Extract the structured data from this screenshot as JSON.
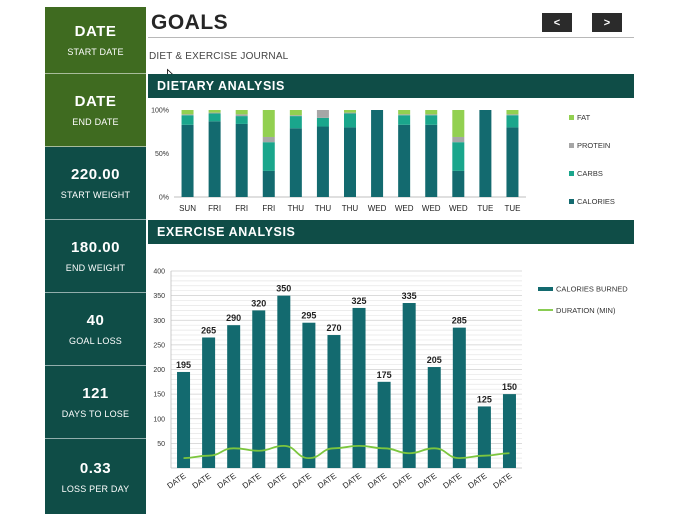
{
  "colors": {
    "green": "#3f6b20",
    "teal_dark": "#0f4d47",
    "bar_teal": "#136a6f",
    "carbs": "#1aa68c",
    "protein": "#a6a6a6",
    "fat": "#92d050",
    "duration_line": "#7cc63e"
  },
  "sidebar": {
    "cards": [
      {
        "value": "DATE",
        "label": "START DATE"
      },
      {
        "value": "DATE",
        "label": "END DATE"
      },
      {
        "value": "220.00",
        "label": "START WEIGHT"
      },
      {
        "value": "180.00",
        "label": "END WEIGHT"
      },
      {
        "value": "40",
        "label": "GOAL LOSS"
      },
      {
        "value": "121",
        "label": "DAYS TO LOSE"
      },
      {
        "value": "0.33",
        "label": "LOSS PER DAY"
      }
    ]
  },
  "header": {
    "title": "GOALS",
    "subtitle": "DIET & EXERCISE JOURNAL",
    "prev_label": "<",
    "next_label": ">",
    "prev_icon": "chevron-left-icon",
    "next_icon": "chevron-right-icon"
  },
  "sections": {
    "dietary": "DIETARY ANALYSIS",
    "exercise": "EXERCISE ANALYSIS"
  },
  "chart_data": [
    {
      "type": "bar",
      "stacked": "percent",
      "title": "DIETARY ANALYSIS",
      "categories": [
        "SUN",
        "FRI",
        "FRI",
        "FRI",
        "THU",
        "THU",
        "THU",
        "WED",
        "WED",
        "WED",
        "WED",
        "TUE",
        "TUE"
      ],
      "y_tick_labels": [
        "0%",
        "50%",
        "100%"
      ],
      "ylim": [
        0,
        100
      ],
      "legend_position": "right",
      "series": [
        {
          "name": "CALORIES",
          "values": [
            83,
            87,
            84,
            30,
            79,
            81,
            80,
            100,
            83,
            83,
            30,
            100,
            80
          ]
        },
        {
          "name": "CARBS",
          "values": [
            11,
            9,
            9,
            33,
            14,
            10,
            16,
            0,
            11,
            11,
            33,
            0,
            14
          ]
        },
        {
          "name": "PROTEIN",
          "values": [
            1,
            1,
            2,
            6,
            1,
            9,
            1,
            0,
            1,
            1,
            6,
            0,
            1
          ]
        },
        {
          "name": "FAT",
          "values": [
            5,
            3,
            5,
            31,
            6,
            0,
            3,
            0,
            5,
            5,
            31,
            0,
            5
          ]
        }
      ],
      "legend_order": [
        "FAT",
        "PROTEIN",
        "CARBS",
        "CALORIES"
      ]
    },
    {
      "type": "bar",
      "title": "EXERCISE ANALYSIS",
      "categories": [
        "DATE",
        "DATE",
        "DATE",
        "DATE",
        "DATE",
        "DATE",
        "DATE",
        "DATE",
        "DATE",
        "DATE",
        "DATE",
        "DATE",
        "DATE",
        "DATE"
      ],
      "ylim": [
        0,
        400
      ],
      "y_ticks": [
        50,
        100,
        150,
        200,
        250,
        300,
        350,
        400
      ],
      "legend_position": "right",
      "series": [
        {
          "name": "CALORIES BURNED",
          "type": "bar",
          "values": [
            195,
            265,
            290,
            320,
            350,
            295,
            270,
            325,
            175,
            335,
            205,
            285,
            125,
            150
          ]
        },
        {
          "name": "DURATION (MIN)",
          "type": "line",
          "values": [
            20,
            25,
            40,
            35,
            45,
            20,
            40,
            45,
            40,
            30,
            40,
            20,
            25,
            30
          ]
        }
      ]
    }
  ]
}
